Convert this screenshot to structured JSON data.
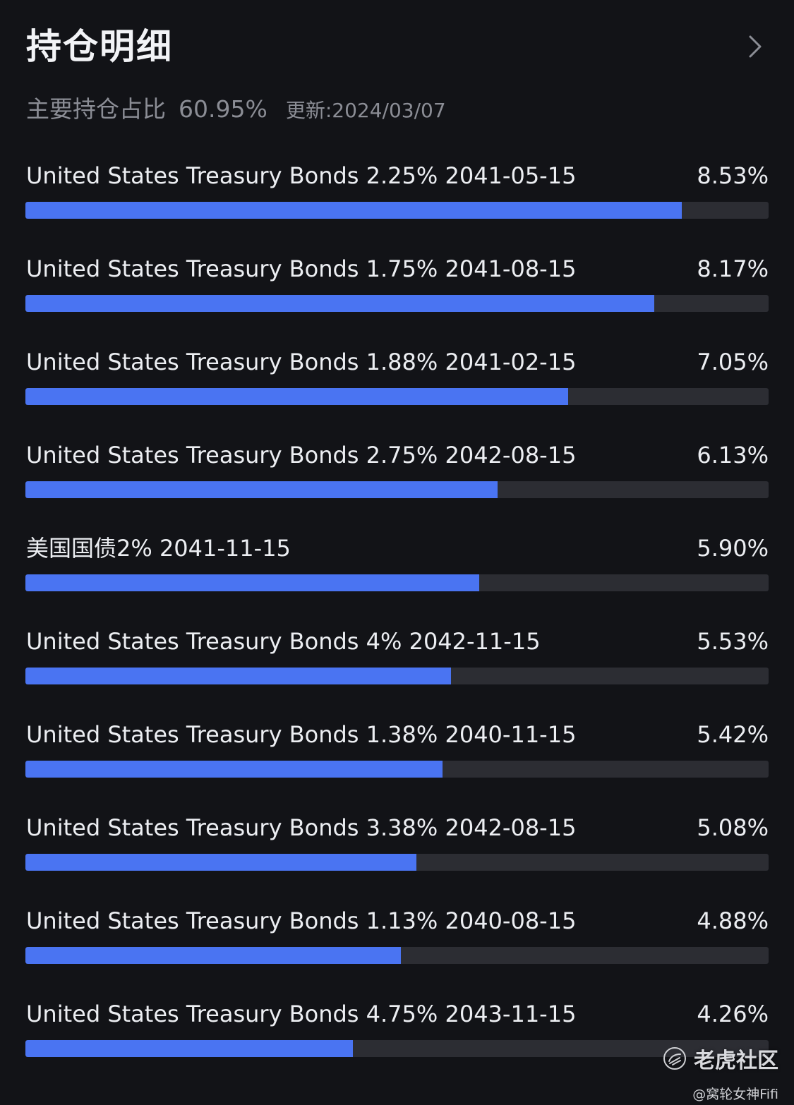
{
  "header": {
    "title": "持仓明细"
  },
  "summary": {
    "label": "主要持仓占比",
    "value": "60.95%",
    "update_label": "更新:",
    "update_date": "2024/03/07"
  },
  "holdings": [
    {
      "name": "United States Treasury Bonds 2.25% 2041-05-15",
      "percent": "8.53%",
      "bar_fraction": 0.8831
    },
    {
      "name": "United States Treasury Bonds 1.75% 2041-08-15",
      "percent": "8.17%",
      "bar_fraction": 0.8461
    },
    {
      "name": "United States Treasury Bonds 1.88% 2041-02-15",
      "percent": "7.05%",
      "bar_fraction": 0.7303
    },
    {
      "name": "United States Treasury Bonds 2.75% 2042-08-15",
      "percent": "6.13%",
      "bar_fraction": 0.6353
    },
    {
      "name": "美国国债2% 2041-11-15",
      "percent": "5.90%",
      "bar_fraction": 0.6106
    },
    {
      "name": "United States Treasury Bonds 4% 2042-11-15",
      "percent": "5.53%",
      "bar_fraction": 0.5726
    },
    {
      "name": "United States Treasury Bonds 1.38% 2040-11-15",
      "percent": "5.42%",
      "bar_fraction": 0.5612
    },
    {
      "name": "United States Treasury Bonds 3.38% 2042-08-15",
      "percent": "5.08%",
      "bar_fraction": 0.5261
    },
    {
      "name": "United States Treasury Bonds 1.13% 2040-08-15",
      "percent": "4.88%",
      "bar_fraction": 0.5052
    },
    {
      "name": "United States Treasury Bonds 4.75% 2043-11-15",
      "percent": "4.26%",
      "bar_fraction": 0.4406
    }
  ],
  "watermark": {
    "brand": "老虎社区",
    "user": "@窝轮女神Fifi",
    "logo_icon": "tiger-logo-icon"
  },
  "colors": {
    "background": "#121317",
    "bar_fill": "#4a74f2",
    "bar_track": "#2c2d33",
    "muted_text": "#8b8d95"
  }
}
